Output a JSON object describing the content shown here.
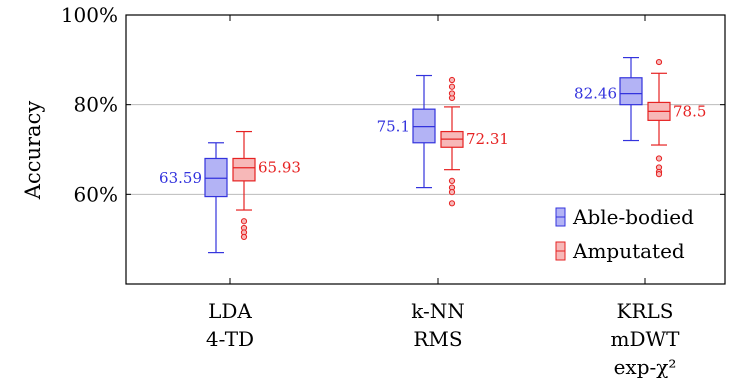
{
  "chart_data": {
    "type": "box",
    "ylabel": "Accuracy",
    "ylim": [
      40,
      100
    ],
    "yticks": [
      {
        "value": 60,
        "label": "60%"
      },
      {
        "value": 80,
        "label": "80%"
      },
      {
        "value": 100,
        "label": "100%"
      }
    ],
    "grid": "horizontal",
    "legend_position": "bottom-right",
    "categories": [
      {
        "lines": [
          "LDA",
          "4-TD"
        ]
      },
      {
        "lines": [
          "k-NN",
          "RMS"
        ]
      },
      {
        "lines": [
          "KRLS",
          "mDWT",
          "exp-χ²"
        ]
      }
    ],
    "series": [
      {
        "name": "Able-bodied",
        "color": "#3333dd",
        "fill": "#b3b3f5",
        "boxes": [
          {
            "median": 63.59,
            "q1": 59.5,
            "q3": 68,
            "whisker_low": 47,
            "whisker_high": 71.5,
            "outliers": []
          },
          {
            "median": 75.1,
            "q1": 71.5,
            "q3": 79,
            "whisker_low": 61.5,
            "whisker_high": 86.5,
            "outliers": []
          },
          {
            "median": 82.46,
            "q1": 80,
            "q3": 86,
            "whisker_low": 72,
            "whisker_high": 90.5,
            "outliers": []
          }
        ]
      },
      {
        "name": "Amputated",
        "color": "#e62222",
        "fill": "#f7b8b8",
        "boxes": [
          {
            "median": 65.93,
            "q1": 63,
            "q3": 68,
            "whisker_low": 56.5,
            "whisker_high": 74,
            "outliers": [
              54,
              52.5,
              51.5,
              50.5
            ]
          },
          {
            "median": 72.31,
            "q1": 70.5,
            "q3": 74,
            "whisker_low": 65.5,
            "whisker_high": 79.5,
            "outliers": [
              81.5,
              82.5,
              84,
              85.5,
              63,
              61.5,
              60.5,
              58
            ]
          },
          {
            "median": 78.5,
            "q1": 76.5,
            "q3": 80.5,
            "whisker_low": 71,
            "whisker_high": 87,
            "outliers": [
              89.5,
              68,
              66,
              65,
              64.5
            ]
          }
        ]
      }
    ]
  }
}
